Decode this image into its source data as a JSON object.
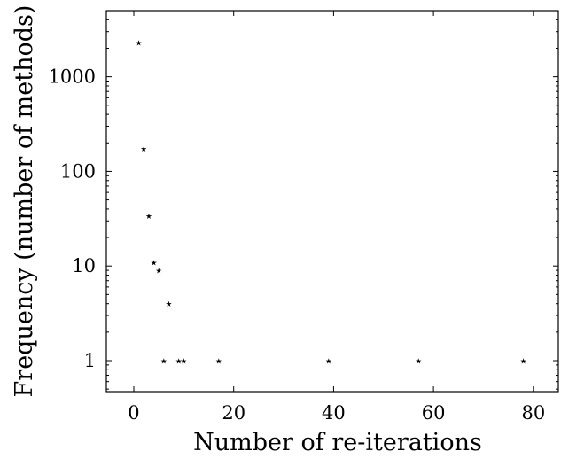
{
  "chart_data": {
    "type": "scatter",
    "title": "",
    "xlabel": "Number of re-iterations",
    "ylabel": "Frequency (number of methods)",
    "xlim": [
      -5.5,
      85
    ],
    "ylim": [
      0.47,
      5000
    ],
    "yscale": "log",
    "grid": false,
    "marker": "star",
    "x_ticks": [
      0,
      20,
      40,
      60,
      80
    ],
    "x_tick_labels": [
      "0",
      "20",
      "40",
      "60",
      "80"
    ],
    "y_ticks": [
      1,
      10,
      100,
      1000
    ],
    "y_tick_labels": [
      "1",
      "10",
      "100",
      "1000"
    ],
    "series": [
      {
        "points": [
          {
            "x": 1,
            "y": 2300
          },
          {
            "x": 2,
            "y": 175
          },
          {
            "x": 3,
            "y": 34
          },
          {
            "x": 4,
            "y": 11
          },
          {
            "x": 5,
            "y": 9
          },
          {
            "x": 6,
            "y": 1
          },
          {
            "x": 7,
            "y": 4
          },
          {
            "x": 9,
            "y": 1
          },
          {
            "x": 10,
            "y": 1
          },
          {
            "x": 17,
            "y": 1
          },
          {
            "x": 39,
            "y": 1
          },
          {
            "x": 57,
            "y": 1
          },
          {
            "x": 78,
            "y": 1
          }
        ]
      }
    ]
  }
}
